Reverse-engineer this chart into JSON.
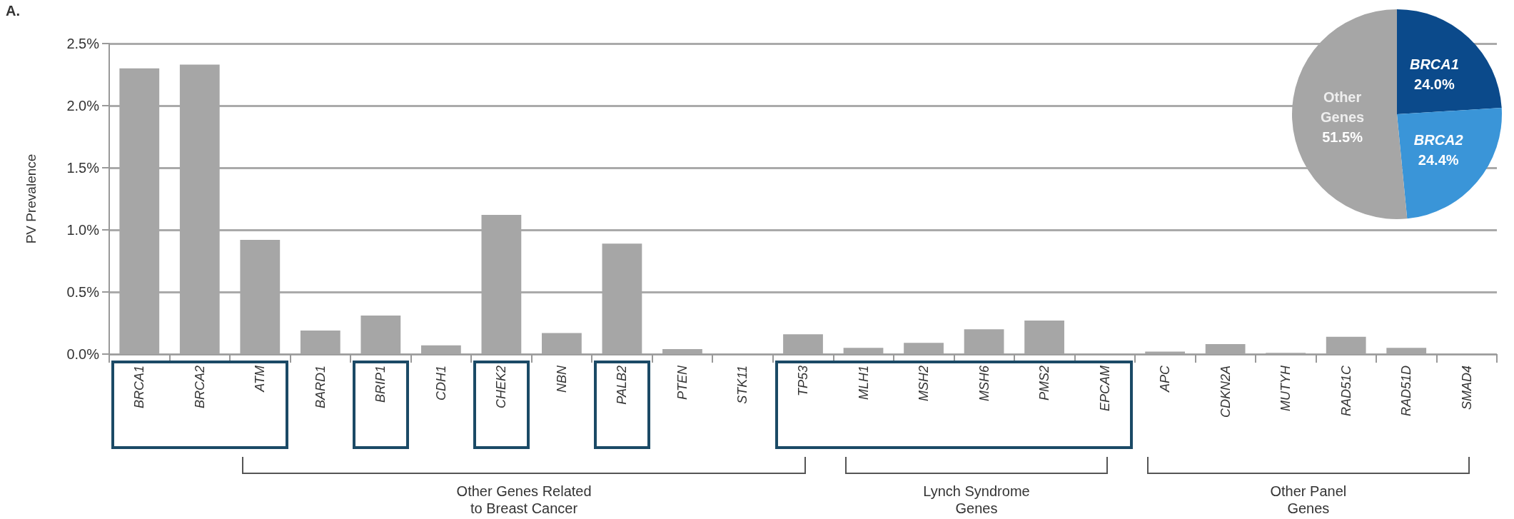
{
  "chart_data": [
    {
      "type": "bar",
      "title": "A.",
      "ylabel": "PV Prevalence",
      "categories": [
        "BRCA1",
        "BRCA2",
        "ATM",
        "BARD1",
        "BRIP1",
        "CDH1",
        "CHEK2",
        "NBN",
        "PALB2",
        "PTEN",
        "STK11",
        "TP53",
        "MLH1",
        "MSH2",
        "MSH6",
        "PMS2",
        "EPCAM",
        "APC",
        "CDKN2A",
        "MUTYH",
        "RAD51C",
        "RAD51D",
        "SMAD4"
      ],
      "values": [
        2.3,
        2.33,
        0.92,
        0.19,
        0.31,
        0.07,
        1.12,
        0.17,
        0.89,
        0.04,
        0,
        0.16,
        0.05,
        0.09,
        0.2,
        0.27,
        0,
        0.02,
        0.08,
        0.01,
        0.14,
        0.05,
        0
      ],
      "color": "#a6a6a6",
      "ylim": [
        0,
        2.5
      ],
      "yticks": [
        {
          "value": 0,
          "label": "0.0%"
        },
        {
          "value": 0.5,
          "label": "0.5%"
        },
        {
          "value": 1,
          "label": "1.0%"
        },
        {
          "value": 1.5,
          "label": "1.5%"
        },
        {
          "value": 2,
          "label": "2.0%"
        },
        {
          "value": 2.5,
          "label": "2.5%"
        }
      ],
      "grid": "y",
      "legend": false,
      "annotations": [
        "Other Genes Related\nto Breast Cancer",
        "Lynch Syndrome\nGenes",
        "Other Panel\nGenes"
      ]
    },
    {
      "type": "pie",
      "categories": [
        "BRCA1",
        "BRCA2",
        "Other Genes"
      ],
      "values": [
        24.0,
        24.4,
        51.5
      ],
      "colors": [
        "#0b4a8b",
        "#3a95d8",
        "#a6a6a6"
      ],
      "value_labels": [
        "24.0%",
        "24.4%",
        "51.5%"
      ],
      "legend": false
    }
  ]
}
